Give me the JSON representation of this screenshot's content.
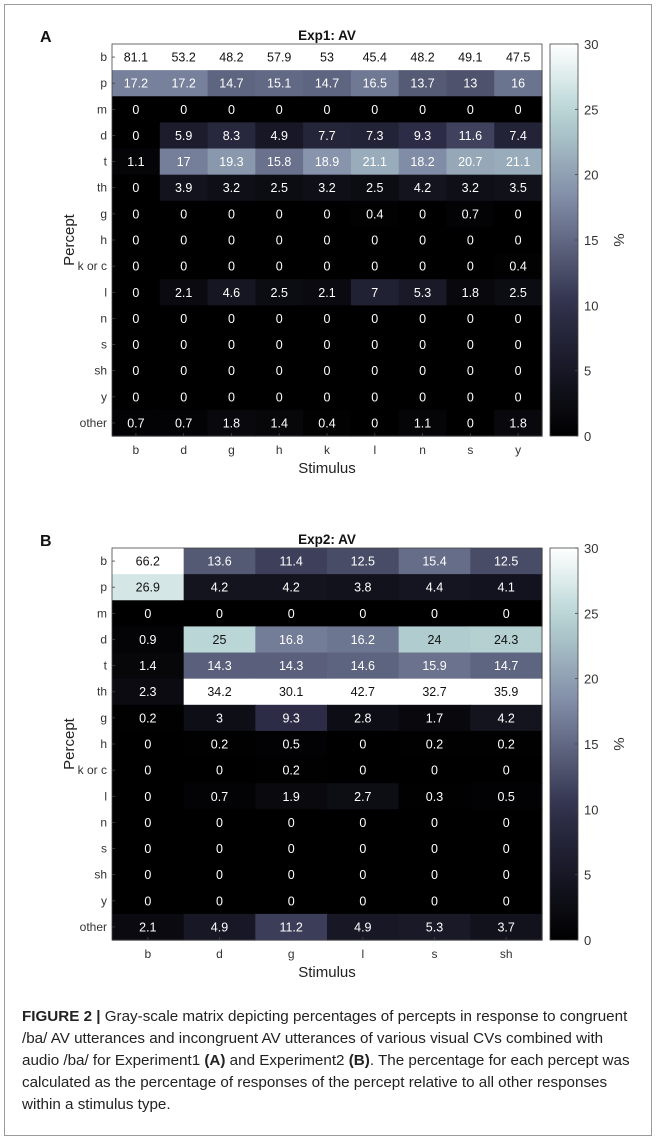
{
  "chart_data": [
    {
      "type": "heatmap",
      "panel_label": "A",
      "title": "Exp1: AV",
      "xlabel": "Stimulus",
      "ylabel": "Percept",
      "x": [
        "b",
        "d",
        "g",
        "h",
        "k",
        "l",
        "n",
        "s",
        "y"
      ],
      "y": [
        "b",
        "p",
        "m",
        "d",
        "t",
        "th",
        "g",
        "h",
        "k or c",
        "l",
        "n",
        "s",
        "sh",
        "y",
        "other"
      ],
      "values": [
        [
          81.1,
          53.2,
          48.2,
          57.9,
          53,
          45.4,
          48.2,
          49.1,
          47.5
        ],
        [
          17.2,
          17.2,
          14.7,
          15.1,
          14.7,
          16.5,
          13.7,
          13,
          16
        ],
        [
          0,
          0,
          0,
          0,
          0,
          0,
          0,
          0,
          0
        ],
        [
          0,
          5.9,
          8.3,
          4.9,
          7.7,
          7.3,
          9.3,
          11.6,
          7.4
        ],
        [
          1.1,
          17,
          19.3,
          15.8,
          18.9,
          21.1,
          18.2,
          20.7,
          21.1
        ],
        [
          0,
          3.9,
          3.2,
          2.5,
          3.2,
          2.5,
          4.2,
          3.2,
          3.5
        ],
        [
          0,
          0,
          0,
          0,
          0,
          0.4,
          0,
          0.7,
          0
        ],
        [
          0,
          0,
          0,
          0,
          0,
          0,
          0,
          0,
          0
        ],
        [
          0,
          0,
          0,
          0,
          0,
          0,
          0,
          0,
          0.4
        ],
        [
          0,
          2.1,
          4.6,
          2.5,
          2.1,
          7,
          5.3,
          1.8,
          2.5
        ],
        [
          0,
          0,
          0,
          0,
          0,
          0,
          0,
          0,
          0
        ],
        [
          0,
          0,
          0,
          0,
          0,
          0,
          0,
          0,
          0
        ],
        [
          0,
          0,
          0,
          0,
          0,
          0,
          0,
          0,
          0
        ],
        [
          0,
          0,
          0,
          0,
          0,
          0,
          0,
          0,
          0
        ],
        [
          0.7,
          0.7,
          1.8,
          1.4,
          0.4,
          0,
          1.1,
          0,
          1.8
        ]
      ],
      "colorbar": {
        "min": 0,
        "max": 30,
        "ticks": [
          0,
          5,
          10,
          15,
          20,
          25,
          30
        ],
        "label": "%"
      }
    },
    {
      "type": "heatmap",
      "panel_label": "B",
      "title": "Exp2: AV",
      "xlabel": "Stimulus",
      "ylabel": "Percept",
      "x": [
        "b",
        "d",
        "g",
        "l",
        "s",
        "sh"
      ],
      "y": [
        "b",
        "p",
        "m",
        "d",
        "t",
        "th",
        "g",
        "h",
        "k or c",
        "l",
        "n",
        "s",
        "sh",
        "y",
        "other"
      ],
      "values": [
        [
          66.2,
          13.6,
          11.4,
          12.5,
          15.4,
          12.5
        ],
        [
          26.9,
          4.2,
          4.2,
          3.8,
          4.4,
          4.1
        ],
        [
          0,
          0,
          0,
          0,
          0,
          0
        ],
        [
          0.9,
          25,
          16.8,
          16.2,
          24,
          24.3
        ],
        [
          1.4,
          14.3,
          14.3,
          14.6,
          15.9,
          14.7
        ],
        [
          2.3,
          34.2,
          30.1,
          42.7,
          32.7,
          35.9
        ],
        [
          0.2,
          3,
          9.3,
          2.8,
          1.7,
          4.2
        ],
        [
          0,
          0.2,
          0.5,
          0,
          0.2,
          0.2
        ],
        [
          0,
          0,
          0.2,
          0,
          0,
          0
        ],
        [
          0,
          0.7,
          1.9,
          2.7,
          0.3,
          0.5
        ],
        [
          0,
          0,
          0,
          0,
          0,
          0
        ],
        [
          0,
          0,
          0,
          0,
          0,
          0
        ],
        [
          0,
          0,
          0,
          0,
          0,
          0
        ],
        [
          0,
          0,
          0,
          0,
          0,
          0
        ],
        [
          2.1,
          4.9,
          11.2,
          4.9,
          5.3,
          3.7
        ]
      ],
      "colorbar": {
        "min": 0,
        "max": 30,
        "ticks": [
          0,
          5,
          10,
          15,
          20,
          25,
          30
        ],
        "label": "%"
      }
    }
  ],
  "caption": {
    "label": "FIGURE 2 |",
    "text1": " Gray-scale matrix depicting percentages of percepts in response to congruent /ba/ AV utterances and incongruent AV utterances of various visual CVs combined with audio /ba/ for Experiment1 ",
    "ref_a": "(A)",
    "text2": " and Experiment2 ",
    "ref_b": "(B)",
    "text3": ". The percentage for each percept was calculated as the percentage of responses of the percept relative to all other responses within a stimulus type."
  },
  "colors": {
    "low": "#000000",
    "mid": "#2f2f4a",
    "mid2": "#7f8aa5",
    "high2": "#b6d3d3",
    "high": "#ffffff"
  }
}
